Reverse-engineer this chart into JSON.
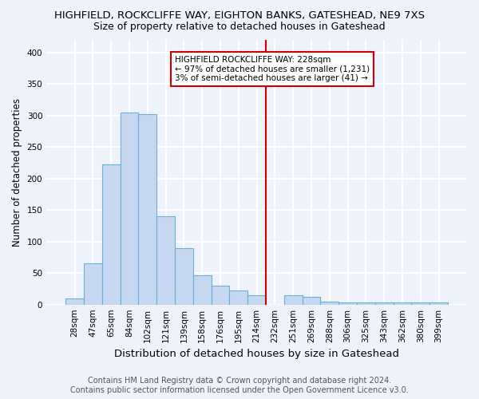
{
  "title1": "HIGHFIELD, ROCKCLIFFE WAY, EIGHTON BANKS, GATESHEAD, NE9 7XS",
  "title2": "Size of property relative to detached houses in Gateshead",
  "xlabel": "Distribution of detached houses by size in Gateshead",
  "ylabel": "Number of detached properties",
  "footer1": "Contains HM Land Registry data © Crown copyright and database right 2024.",
  "footer2": "Contains public sector information licensed under the Open Government Licence v3.0.",
  "bin_labels": [
    "28sqm",
    "47sqm",
    "65sqm",
    "84sqm",
    "102sqm",
    "121sqm",
    "139sqm",
    "158sqm",
    "176sqm",
    "195sqm",
    "214sqm",
    "232sqm",
    "251sqm",
    "269sqm",
    "288sqm",
    "306sqm",
    "325sqm",
    "343sqm",
    "362sqm",
    "380sqm",
    "399sqm"
  ],
  "bar_values": [
    10,
    65,
    222,
    305,
    302,
    140,
    90,
    46,
    30,
    22,
    15,
    0,
    15,
    12,
    5,
    3,
    3,
    3,
    3,
    3,
    3
  ],
  "bar_color": "#c5d8f0",
  "bar_edgecolor": "#6aaed6",
  "vline_index": 11,
  "vline_color": "#cc0000",
  "annotation_title": "HIGHFIELD ROCKCLIFFE WAY: 228sqm",
  "annotation_line1": "← 97% of detached houses are smaller (1,231)",
  "annotation_line2": "3% of semi-detached houses are larger (41) →",
  "annotation_box_color": "#ffffff",
  "annotation_box_edgecolor": "#cc0000",
  "ylim": [
    0,
    420
  ],
  "yticks": [
    0,
    50,
    100,
    150,
    200,
    250,
    300,
    350,
    400
  ],
  "background_color": "#eef2fb",
  "grid_color": "#ffffff",
  "title1_fontsize": 9.5,
  "title2_fontsize": 9,
  "ylabel_fontsize": 8.5,
  "xlabel_fontsize": 9.5,
  "tick_fontsize": 7.5,
  "footer_fontsize": 7
}
